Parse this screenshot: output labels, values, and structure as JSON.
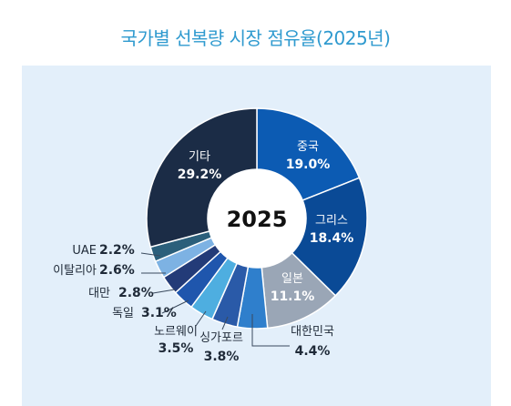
{
  "chart_data": {
    "type": "pie",
    "title": "국가별 선복량 시장 점유율(2025년)",
    "center_label": "2025",
    "unit": "%",
    "slices": [
      {
        "name": "중국",
        "value": 19.0,
        "value_label": "19.0%",
        "color": "#0c5bb3"
      },
      {
        "name": "그리스",
        "value": 18.4,
        "value_label": "18.4%",
        "color": "#0a4a96"
      },
      {
        "name": "일본",
        "value": 11.1,
        "value_label": "11.1%",
        "color": "#9aa6b6"
      },
      {
        "name": "대한민국",
        "value": 4.4,
        "value_label": "4.4%",
        "color": "#2f7fcc"
      },
      {
        "name": "싱가포르",
        "value": 3.8,
        "value_label": "3.8%",
        "color": "#2a5aa8"
      },
      {
        "name": "노르웨이",
        "value": 3.5,
        "value_label": "3.5%",
        "color": "#4eaee0"
      },
      {
        "name": "독일",
        "value": 3.1,
        "value_label": "3.1%",
        "color": "#1f56ad"
      },
      {
        "name": "대만",
        "value": 2.8,
        "value_label": "2.8%",
        "color": "#233b78"
      },
      {
        "name": "이탈리아",
        "value": 2.6,
        "value_label": "2.6%",
        "color": "#7db2e3"
      },
      {
        "name": "UAE",
        "value": 2.2,
        "value_label": "2.2%",
        "color": "#2b5f7b"
      },
      {
        "name": "기타",
        "value": 29.2,
        "value_label": "29.2%",
        "color": "#1b2c46"
      }
    ]
  }
}
